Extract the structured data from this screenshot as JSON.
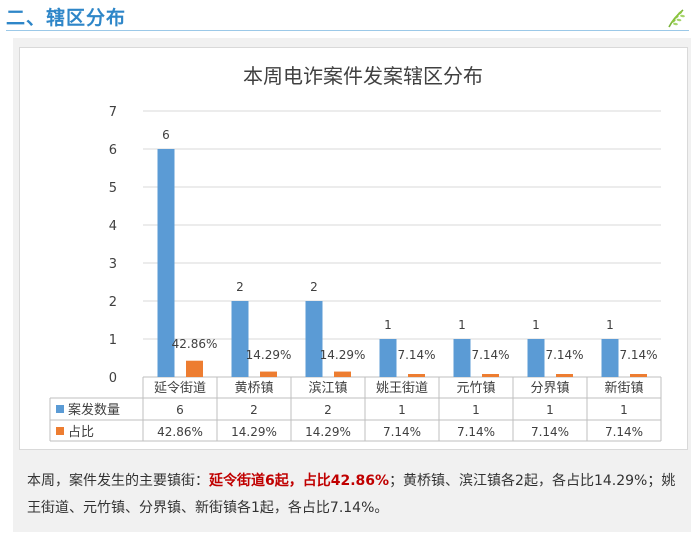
{
  "section": {
    "title": "二、辖区分布"
  },
  "icons": {
    "corner": "leaf-sprig-icon"
  },
  "colors": {
    "series1": "#5b9bd5",
    "series2": "#ed7d31",
    "accent": "#2e86c8",
    "highlight": "#c00000"
  },
  "chart_data": {
    "type": "bar",
    "title": "本周电诈案件发案辖区分布",
    "categories": [
      "延令街道",
      "黄桥镇",
      "滨江镇",
      "姚王街道",
      "元竹镇",
      "分界镇",
      "新街镇"
    ],
    "series": [
      {
        "name": "案发数量",
        "values": [
          6,
          2,
          2,
          1,
          1,
          1,
          1
        ],
        "labels": [
          "6",
          "2",
          "2",
          "1",
          "1",
          "1",
          "1"
        ]
      },
      {
        "name": "占比",
        "values": [
          0.4286,
          0.1429,
          0.1429,
          0.0714,
          0.0714,
          0.0714,
          0.0714
        ],
        "labels": [
          "42.86%",
          "14.29%",
          "14.29%",
          "7.14%",
          "7.14%",
          "7.14%",
          "7.14%"
        ]
      }
    ],
    "ylim": [
      0,
      7
    ],
    "yticks": [
      "0",
      "1",
      "2",
      "3",
      "4",
      "5",
      "6",
      "7"
    ],
    "grid": true,
    "legend": "data-table"
  },
  "summary": {
    "part1": "本周，案件发生的主要镇街：",
    "highlight": "延令街道6起，占比42.86%",
    "part2": "；黄桥镇、滨江镇各2起，各占比14.29%；姚王街道、元竹镇、分界镇、新街镇各1起，各占比7.14%。"
  }
}
